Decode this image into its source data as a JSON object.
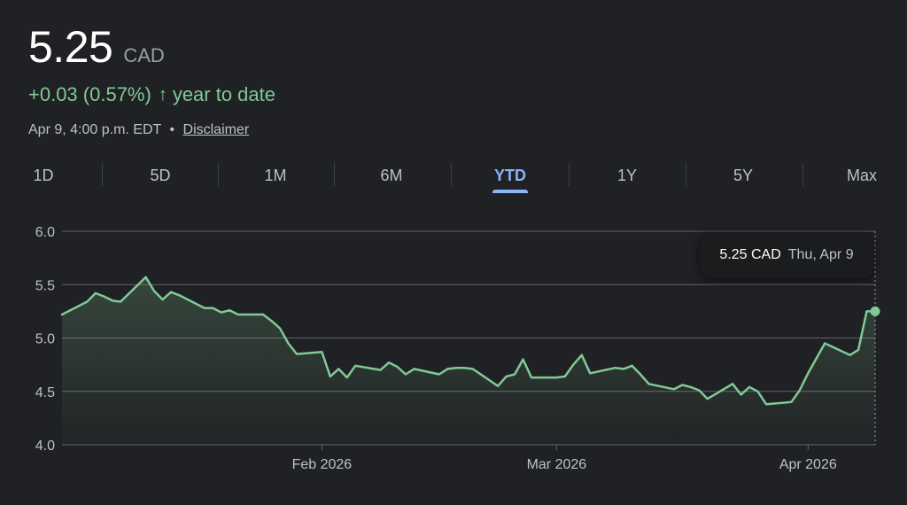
{
  "quote": {
    "price": "5.25",
    "currency": "CAD",
    "change": "+0.03 (0.57%)",
    "change_arrow": "↑",
    "change_period": "year to date",
    "timestamp": "Apr 9, 4:00 p.m. EDT",
    "separator": "•",
    "disclaimer": "Disclaimer"
  },
  "tabs": [
    {
      "label": "1D"
    },
    {
      "label": "5D"
    },
    {
      "label": "1M"
    },
    {
      "label": "6M"
    },
    {
      "label": "YTD",
      "active": true
    },
    {
      "label": "1Y"
    },
    {
      "label": "5Y"
    },
    {
      "label": "Max"
    }
  ],
  "tooltip": {
    "value": "5.25 CAD",
    "date": "Thu, Apr 9"
  },
  "colors": {
    "line": "#81c995",
    "accent": "#8ab4f8",
    "background": "#202124",
    "grid": "#5f6368"
  },
  "chart_data": {
    "type": "area",
    "y_ticks": [
      "6.0",
      "5.5",
      "5.0",
      "4.5",
      "4.0"
    ],
    "ylim": [
      4.0,
      6.0
    ],
    "x_ticks": [
      {
        "label": "Feb 2026",
        "date": "2026-02-02"
      },
      {
        "label": "Mar 2026",
        "date": "2026-03-02"
      },
      {
        "label": "Apr 2026",
        "date": "2026-04-01"
      }
    ],
    "xlim": [
      "2026-01-02",
      "2026-04-09"
    ],
    "grid": true,
    "legend": "none",
    "series": [
      {
        "points": [
          [
            "2026-01-02",
            5.22
          ],
          [
            "2026-01-05",
            5.34
          ],
          [
            "2026-01-06",
            5.42
          ],
          [
            "2026-01-07",
            5.39
          ],
          [
            "2026-01-08",
            5.35
          ],
          [
            "2026-01-09",
            5.34
          ],
          [
            "2026-01-12",
            5.57
          ],
          [
            "2026-01-13",
            5.44
          ],
          [
            "2026-01-14",
            5.36
          ],
          [
            "2026-01-15",
            5.43
          ],
          [
            "2026-01-16",
            5.4
          ],
          [
            "2026-01-19",
            5.28
          ],
          [
            "2026-01-20",
            5.28
          ],
          [
            "2026-01-21",
            5.24
          ],
          [
            "2026-01-22",
            5.26
          ],
          [
            "2026-01-23",
            5.22
          ],
          [
            "2026-01-26",
            5.22
          ],
          [
            "2026-01-27",
            5.16
          ],
          [
            "2026-01-28",
            5.09
          ],
          [
            "2026-01-29",
            4.95
          ],
          [
            "2026-01-30",
            4.85
          ],
          [
            "2026-02-02",
            4.87
          ],
          [
            "2026-02-03",
            4.64
          ],
          [
            "2026-02-04",
            4.71
          ],
          [
            "2026-02-05",
            4.63
          ],
          [
            "2026-02-06",
            4.74
          ],
          [
            "2026-02-09",
            4.7
          ],
          [
            "2026-02-10",
            4.77
          ],
          [
            "2026-02-11",
            4.73
          ],
          [
            "2026-02-12",
            4.66
          ],
          [
            "2026-02-13",
            4.71
          ],
          [
            "2026-02-16",
            4.66
          ],
          [
            "2026-02-17",
            4.71
          ],
          [
            "2026-02-18",
            4.72
          ],
          [
            "2026-02-19",
            4.72
          ],
          [
            "2026-02-20",
            4.71
          ],
          [
            "2026-02-23",
            4.55
          ],
          [
            "2026-02-24",
            4.64
          ],
          [
            "2026-02-25",
            4.66
          ],
          [
            "2026-02-26",
            4.8
          ],
          [
            "2026-02-27",
            4.63
          ],
          [
            "2026-03-02",
            4.63
          ],
          [
            "2026-03-03",
            4.64
          ],
          [
            "2026-03-04",
            4.75
          ],
          [
            "2026-03-05",
            4.84
          ],
          [
            "2026-03-06",
            4.67
          ],
          [
            "2026-03-09",
            4.72
          ],
          [
            "2026-03-10",
            4.71
          ],
          [
            "2026-03-11",
            4.74
          ],
          [
            "2026-03-12",
            4.66
          ],
          [
            "2026-03-13",
            4.57
          ],
          [
            "2026-03-16",
            4.52
          ],
          [
            "2026-03-17",
            4.56
          ],
          [
            "2026-03-18",
            4.54
          ],
          [
            "2026-03-19",
            4.51
          ],
          [
            "2026-03-20",
            4.43
          ],
          [
            "2026-03-23",
            4.57
          ],
          [
            "2026-03-24",
            4.47
          ],
          [
            "2026-03-25",
            4.54
          ],
          [
            "2026-03-26",
            4.5
          ],
          [
            "2026-03-27",
            4.38
          ],
          [
            "2026-03-30",
            4.4
          ],
          [
            "2026-03-31",
            4.51
          ],
          [
            "2026-04-01",
            4.67
          ],
          [
            "2026-04-02",
            4.81
          ],
          [
            "2026-04-03",
            4.95
          ],
          [
            "2026-04-06",
            4.84
          ],
          [
            "2026-04-07",
            4.89
          ],
          [
            "2026-04-08",
            5.25
          ],
          [
            "2026-04-09",
            5.25
          ]
        ]
      }
    ]
  }
}
